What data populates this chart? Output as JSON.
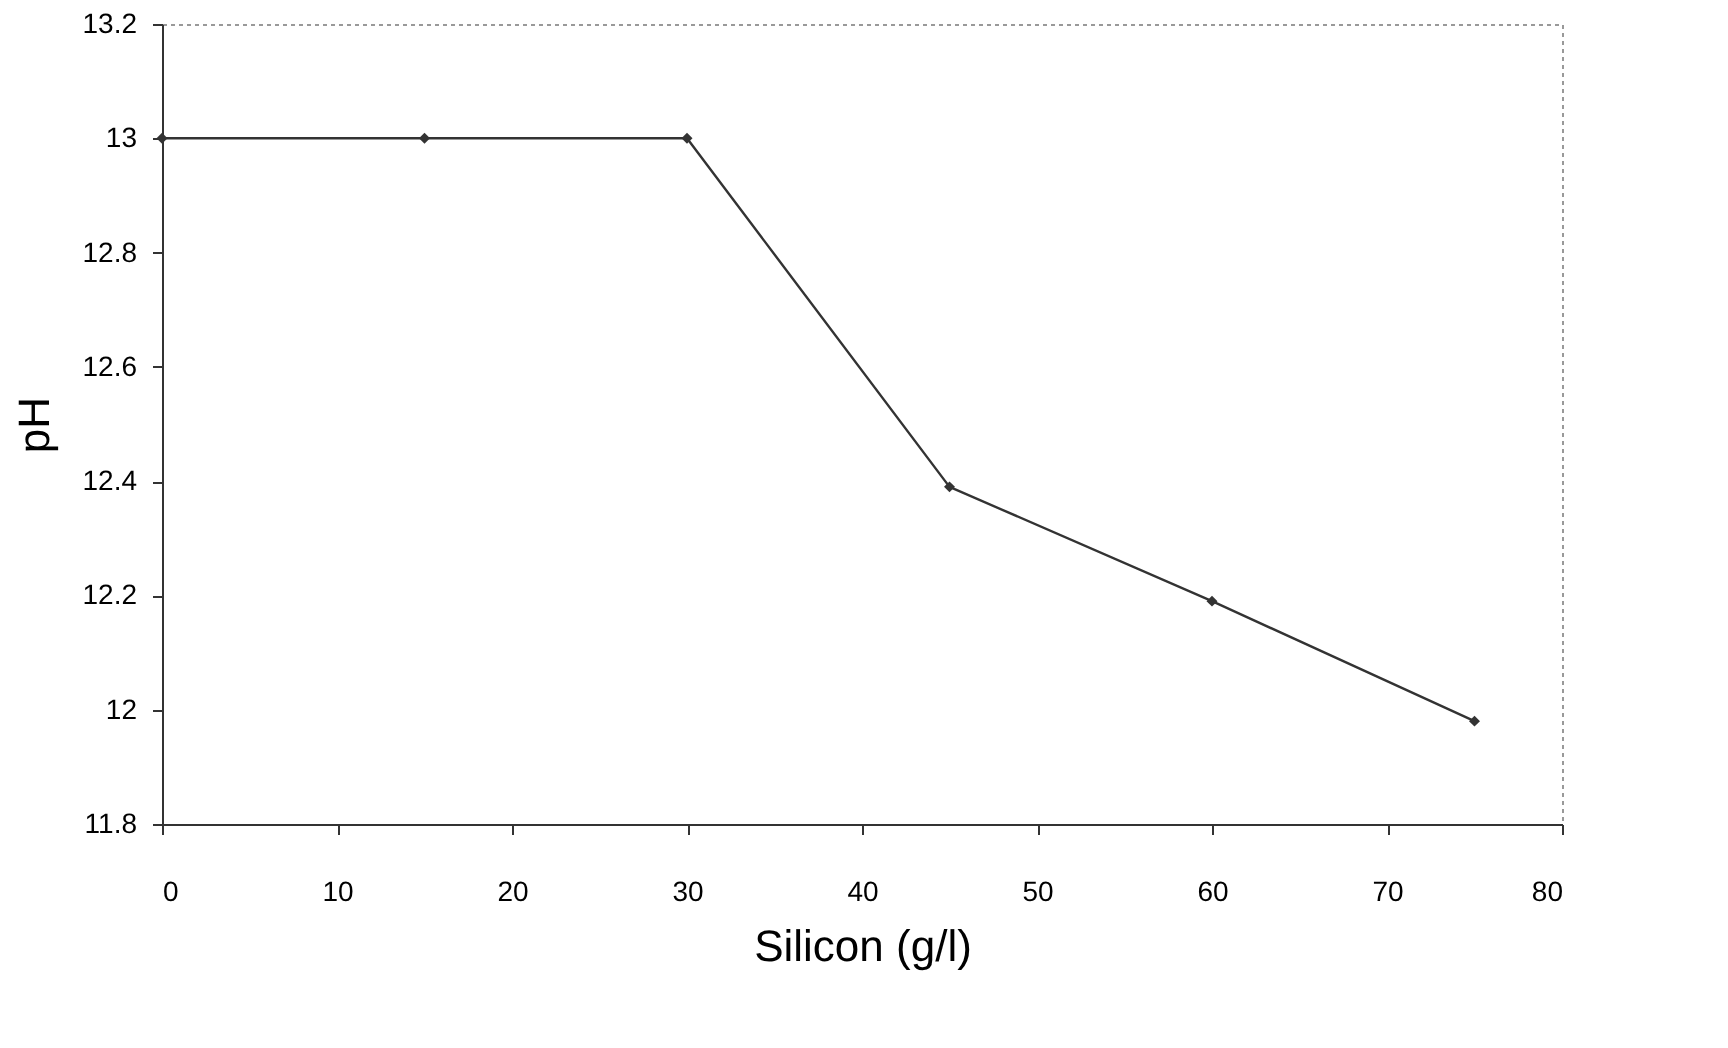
{
  "chart_data": {
    "type": "line",
    "xlabel": "Silicon (g/l)",
    "ylabel": "pH",
    "x": [
      0,
      15,
      30,
      45,
      60,
      75
    ],
    "series": [
      {
        "color": "#333333",
        "values": [
          13.0,
          13.0,
          13.0,
          12.39,
          12.19,
          11.98
        ]
      }
    ],
    "xlim": [
      0,
      80
    ],
    "xticks": [
      0,
      10,
      20,
      30,
      40,
      50,
      60,
      70,
      80
    ],
    "ylim": [
      11.8,
      13.2
    ],
    "yticks": [
      11.8,
      12,
      12.2,
      12.4,
      12.6,
      12.8,
      13,
      13.2
    ],
    "grid": false,
    "marker": "diamond",
    "line_style": "solid"
  }
}
